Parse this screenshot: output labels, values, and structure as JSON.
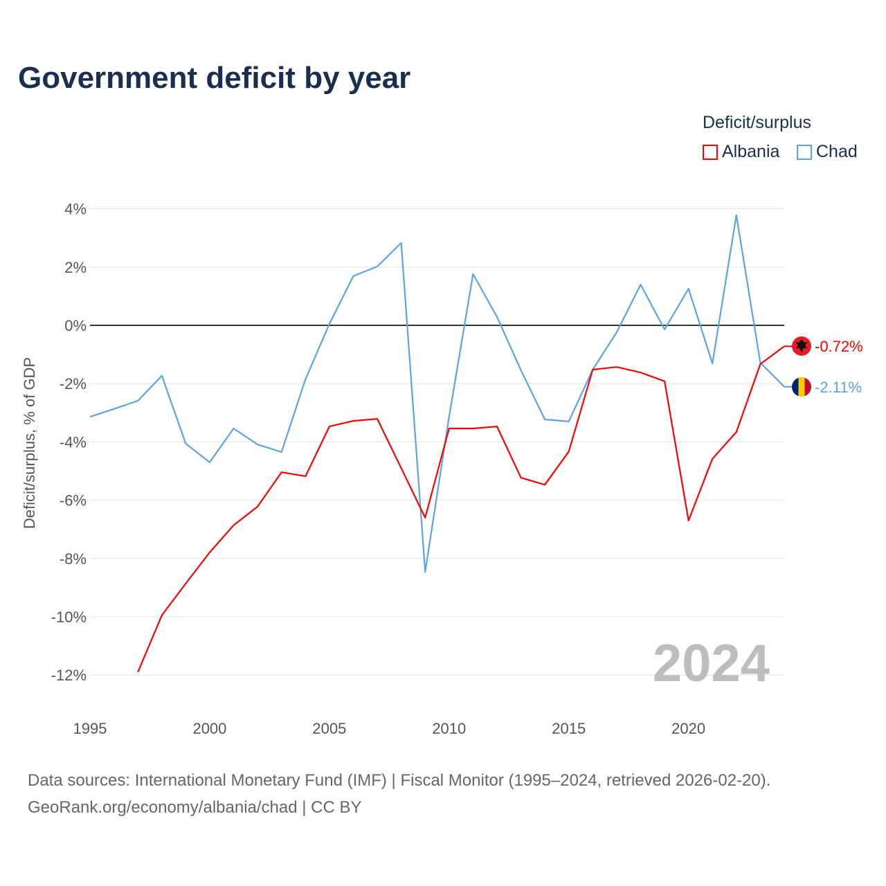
{
  "chart_data": {
    "type": "line",
    "title": "Government deficit by year",
    "ylabel": "Deficit/surplus, % of GDP",
    "xlabel": "",
    "legend_title": "Deficit/surplus",
    "legend_placement": "top-right",
    "xlim": [
      1995,
      2024
    ],
    "ylim": [
      -13,
      4.5
    ],
    "x_ticks": [
      1995,
      2000,
      2005,
      2010,
      2015,
      2020
    ],
    "y_ticks": [
      4,
      2,
      0,
      -2,
      -4,
      -6,
      -8,
      -10,
      -12
    ],
    "y_tick_labels": [
      "4%",
      "2%",
      "0%",
      "-2%",
      "-4%",
      "-6%",
      "-8%",
      "-10%",
      "-12%"
    ],
    "year_label": "2024",
    "series": [
      {
        "name": "Albania",
        "color": "#ff0000",
        "end_label": "-0.72%",
        "x": [
          1997,
          1998,
          1999,
          2000,
          2001,
          2002,
          2003,
          2004,
          2005,
          2006,
          2007,
          2008,
          2009,
          2010,
          2011,
          2012,
          2013,
          2014,
          2015,
          2016,
          2017,
          2018,
          2019,
          2020,
          2021,
          2022,
          2023,
          2024
        ],
        "values": [
          -11.9,
          -9.95,
          -8.86,
          -7.79,
          -6.86,
          -6.22,
          -5.04,
          -5.18,
          -3.47,
          -3.28,
          -3.21,
          -4.9,
          -6.6,
          -3.54,
          -3.54,
          -3.47,
          -5.23,
          -5.47,
          -4.33,
          -1.52,
          -1.43,
          -1.62,
          -1.92,
          -6.7,
          -4.58,
          -3.66,
          -1.33,
          -0.72
        ]
      },
      {
        "name": "Chad",
        "color": "#5ba3e6",
        "end_label": "-2.11%",
        "x": [
          1995,
          1996,
          1997,
          1998,
          1999,
          2000,
          2001,
          2002,
          2003,
          2004,
          2005,
          2006,
          2007,
          2008,
          2009,
          2010,
          2011,
          2012,
          2013,
          2014,
          2015,
          2016,
          2017,
          2018,
          2019,
          2020,
          2021,
          2022,
          2023,
          2024
        ],
        "values": [
          -3.14,
          -2.87,
          -2.59,
          -1.73,
          -4.06,
          -4.7,
          -3.54,
          -4.09,
          -4.35,
          -1.85,
          0.05,
          1.69,
          2.02,
          2.83,
          -8.46,
          -3.14,
          1.76,
          0.29,
          -1.54,
          -3.23,
          -3.3,
          -1.52,
          -0.24,
          1.4,
          -0.14,
          1.26,
          -1.31,
          3.78,
          -1.28,
          -2.11
        ]
      }
    ]
  },
  "footer": {
    "line1": "Data sources: International Monetary Fund (IMF) | Fiscal Monitor (1995–2024, retrieved 2026-02-20).",
    "line2": "GeoRank.org/economy/albania/chad | CC BY"
  }
}
